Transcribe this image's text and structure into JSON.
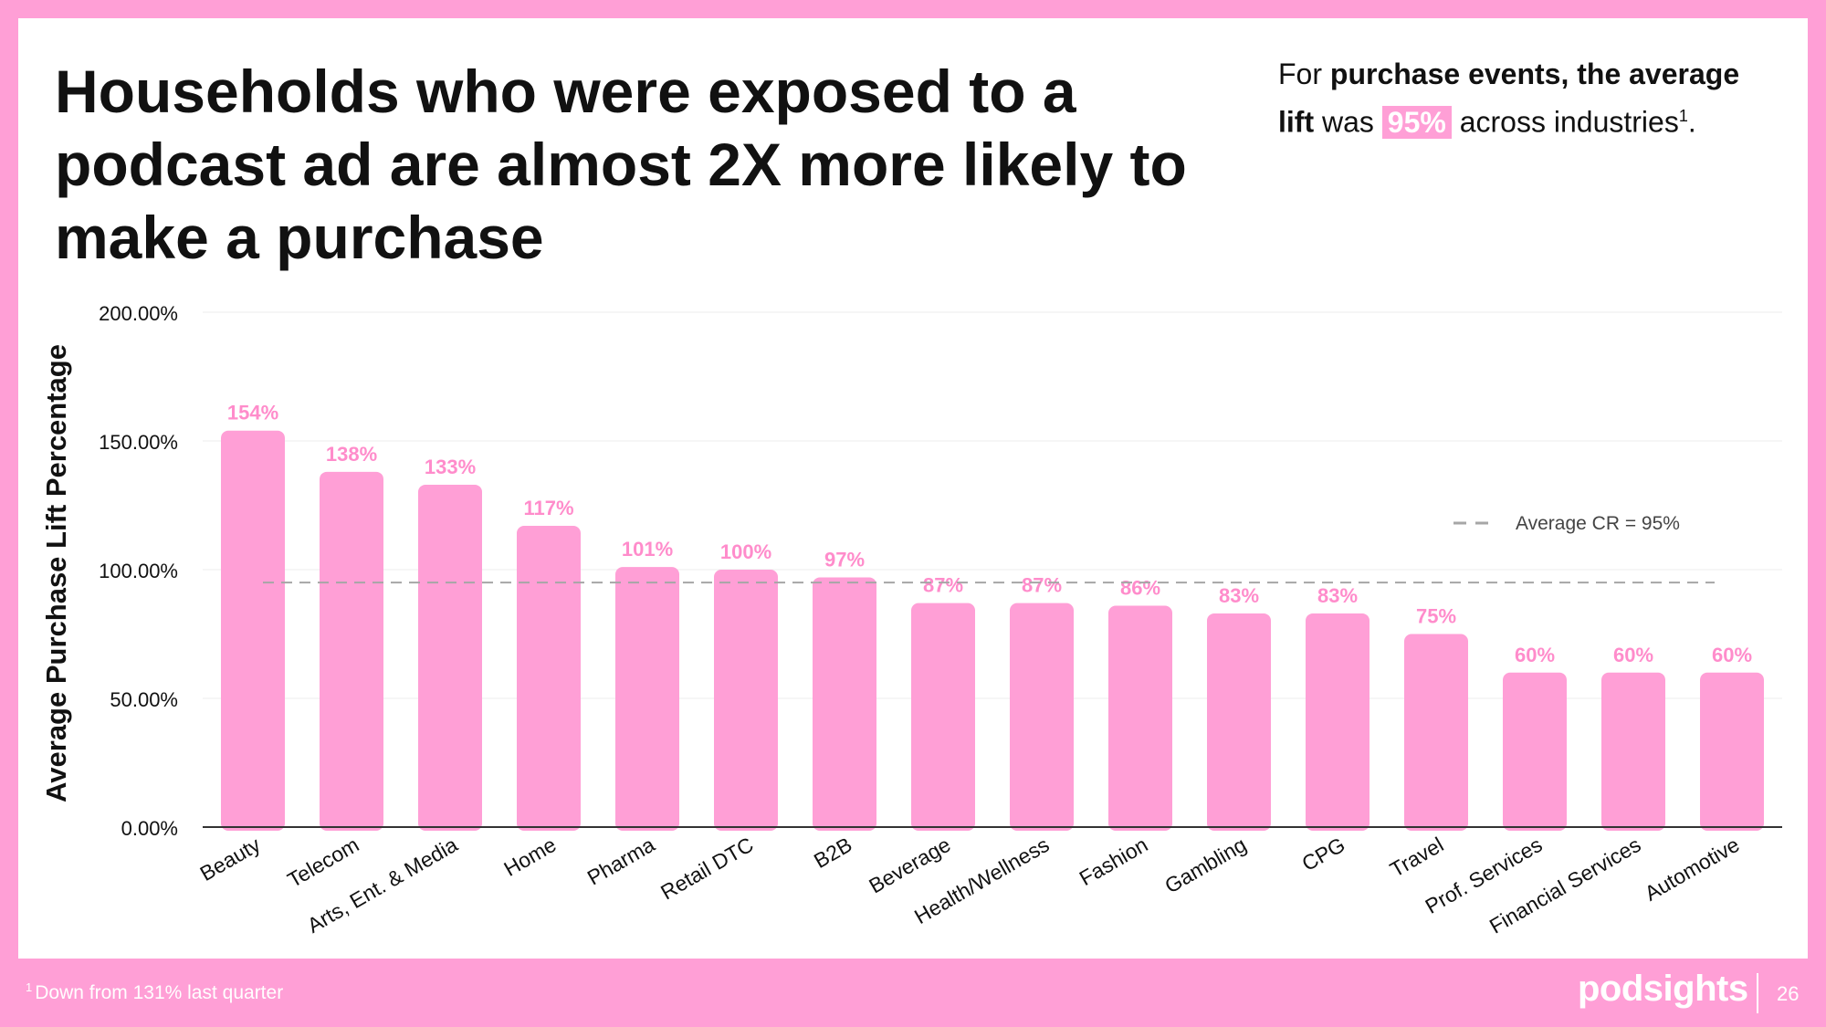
{
  "headline": "Households who were exposed to a podcast ad are almost 2X more likely to make a purchase",
  "callout": {
    "part1": "For ",
    "bold1": "purchase events, the average lift",
    "part2": " was ",
    "highlight": "95%",
    "part3": " across industries",
    "footnote_mark": "1",
    "end": "."
  },
  "colors": {
    "bar": "#ff9fd6",
    "label": "#ff8ccb",
    "border": "#ff9fd6",
    "avg_line": "#a6a6a6"
  },
  "chart_data": {
    "type": "bar",
    "title": "",
    "xlabel": "",
    "ylabel": "Average Purchase Lift Percentage",
    "ylim": [
      0,
      200
    ],
    "yticks": [
      0,
      50,
      100,
      150,
      200
    ],
    "ytick_labels": [
      "0.00%",
      "50.00%",
      "100.00%",
      "150.00%",
      "200.00%"
    ],
    "categories": [
      "Beauty",
      "Telecom",
      "Arts, Ent. & Media",
      "Home",
      "Pharma",
      "Retail DTC",
      "B2B",
      "Beverage",
      "Health/Wellness",
      "Fashion",
      "Gambling",
      "CPG",
      "Travel",
      "Prof. Services",
      "Financial Services",
      "Automotive"
    ],
    "values": [
      154,
      138,
      133,
      117,
      101,
      100,
      97,
      87,
      87,
      86,
      83,
      83,
      75,
      60,
      60,
      60
    ],
    "data_labels": [
      "154%",
      "138%",
      "133%",
      "117%",
      "101%",
      "100%",
      "97%",
      "87%",
      "87%",
      "86%",
      "83%",
      "83%",
      "75%",
      "60%",
      "60%",
      "60%"
    ],
    "reference_line": {
      "value": 95,
      "label": "Average CR = 95%",
      "style": "dashed"
    },
    "legend": {
      "position": "top-right",
      "label": "Average CR = 95%"
    },
    "grid": true
  },
  "footnote": {
    "mark": "1",
    "text": "Down from 131% last quarter"
  },
  "brand": "podsights",
  "page_number": "26"
}
